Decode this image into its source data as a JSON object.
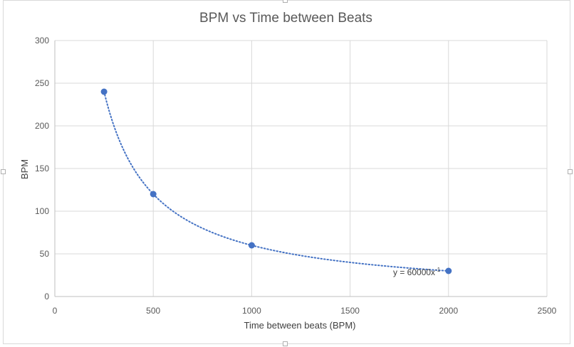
{
  "colors": {
    "series": "#4472C4",
    "gridline": "#d9d9d9",
    "axis_line": "#bfbfbf",
    "text": "#595959"
  },
  "chart_data": {
    "type": "scatter",
    "title": "BPM vs Time between Beats",
    "xlabel": "Time between beats (BPM)",
    "ylabel": "BPM",
    "xlim": [
      0,
      2500
    ],
    "ylim": [
      0,
      300
    ],
    "x_ticks": [
      "0",
      "500",
      "1000",
      "1500",
      "2000",
      "2500"
    ],
    "y_ticks": [
      "0",
      "50",
      "100",
      "150",
      "200",
      "250",
      "300"
    ],
    "grid": true,
    "legend": "none",
    "series": [
      {
        "x": [
          250,
          500,
          1000,
          2000
        ],
        "y": [
          240,
          120,
          60,
          30
        ]
      }
    ],
    "trendline": {
      "type": "power",
      "coefficient": 60000,
      "exponent": -1,
      "style": "dotted",
      "equation": "y = 60000x",
      "equation_superscript": "-1"
    }
  }
}
